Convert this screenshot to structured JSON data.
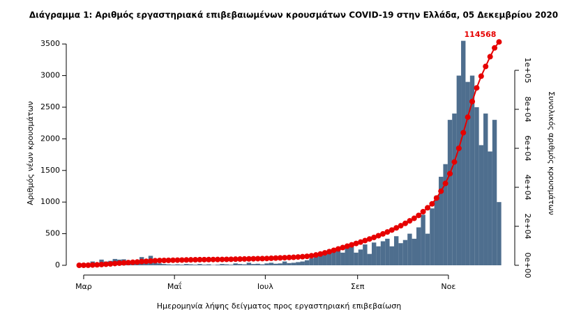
{
  "chart_data": {
    "type": "bar_line",
    "title": "Διάγραμμα 1: Αριθμός εργαστηριακά επιβεβαιωμένων κρουσμάτων COVID-19 στην Ελλάδα, 05 Δεκεμβρίου 2020",
    "x_label": "Ημερομηνία λήψης δείγματος προς εργαστηριακή επιβεβαίωση",
    "y_label": "Αριθμός νέων κρουσμάτων",
    "y2_label": "Συνολικός αριθμός κρουσμάτων",
    "x": [
      -3,
      0,
      3,
      6,
      9,
      12,
      15,
      18,
      21,
      24,
      27,
      30,
      33,
      36,
      39,
      42,
      45,
      48,
      51,
      54,
      57,
      60,
      63,
      66,
      69,
      72,
      75,
      78,
      81,
      84,
      87,
      90,
      93,
      96,
      99,
      102,
      105,
      108,
      111,
      114,
      117,
      120,
      123,
      126,
      129,
      132,
      135,
      138,
      141,
      144,
      147,
      150,
      153,
      156,
      159,
      162,
      165,
      168,
      171,
      174,
      177,
      180,
      183,
      186,
      189,
      192,
      195,
      198,
      201,
      204,
      207,
      210,
      213,
      216,
      219,
      222,
      225,
      228,
      231,
      234,
      237,
      240,
      243,
      246,
      249,
      252,
      255,
      258,
      261,
      264,
      267,
      270,
      273,
      276,
      279
    ],
    "series": [
      {
        "name": "Νέα κρούσματα",
        "color": "#4e6e8e",
        "axis": "y",
        "values": [
          3,
          10,
          20,
          60,
          40,
          90,
          60,
          70,
          100,
          90,
          95,
          70,
          60,
          70,
          130,
          60,
          150,
          40,
          30,
          20,
          15,
          10,
          15,
          10,
          20,
          15,
          10,
          20,
          10,
          15,
          5,
          10,
          20,
          15,
          10,
          30,
          20,
          15,
          40,
          20,
          25,
          15,
          30,
          40,
          25,
          30,
          60,
          35,
          40,
          50,
          60,
          80,
          110,
          150,
          200,
          180,
          250,
          230,
          270,
          200,
          290,
          300,
          200,
          250,
          330,
          180,
          360,
          300,
          380,
          420,
          300,
          460,
          350,
          400,
          500,
          420,
          600,
          800,
          500,
          900,
          1100,
          1400,
          1600,
          2300,
          2400,
          3000,
          3550,
          2900,
          3000,
          2500,
          1900,
          2400,
          1800,
          2300,
          1000
        ]
      },
      {
        "name": "Συνολικά κρούσματα",
        "color": "#e60000",
        "axis": "y2",
        "values": [
          0,
          10,
          50,
          150,
          250,
          400,
          550,
          700,
          900,
          1100,
          1250,
          1400,
          1550,
          1700,
          1900,
          2050,
          2200,
          2350,
          2450,
          2500,
          2550,
          2600,
          2650,
          2700,
          2750,
          2800,
          2850,
          2880,
          2910,
          2940,
          2960,
          2980,
          3010,
          3050,
          3100,
          3150,
          3200,
          3250,
          3300,
          3350,
          3400,
          3430,
          3500,
          3600,
          3700,
          3800,
          3900,
          4000,
          4100,
          4250,
          4400,
          4600,
          4900,
          5300,
          5800,
          6400,
          7000,
          7700,
          8400,
          9100,
          9800,
          10500,
          11200,
          11900,
          12700,
          13500,
          14300,
          15200,
          16100,
          17100,
          18100,
          19200,
          20300,
          21500,
          22800,
          24100,
          25600,
          27500,
          29500,
          31500,
          34500,
          38000,
          42000,
          47000,
          53000,
          60000,
          68000,
          76000,
          84000,
          91000,
          97000,
          102000,
          107000,
          111500,
          114568
        ]
      }
    ],
    "annotation": "114568",
    "xlim": [
      -7,
      283
    ],
    "xticks": [
      {
        "value": 0,
        "label": "Μαρ"
      },
      {
        "value": 61,
        "label": "Μαΐ"
      },
      {
        "value": 122,
        "label": "Ιουλ"
      },
      {
        "value": 184,
        "label": "Σεπ"
      },
      {
        "value": 245,
        "label": "Νοε"
      }
    ],
    "ylim": [
      0,
      3700
    ],
    "yticks": [
      0,
      500,
      1000,
      1500,
      2000,
      2500,
      3000,
      3500
    ],
    "y2lim": [
      0,
      120000
    ],
    "y2ticks": [
      {
        "value": 0,
        "label": "0e+00"
      },
      {
        "value": 20000,
        "label": "2e+04"
      },
      {
        "value": 40000,
        "label": "4e+04"
      },
      {
        "value": 60000,
        "label": "6e+04"
      },
      {
        "value": 80000,
        "label": "8e+04"
      },
      {
        "value": 100000,
        "label": "1e+05"
      }
    ]
  }
}
